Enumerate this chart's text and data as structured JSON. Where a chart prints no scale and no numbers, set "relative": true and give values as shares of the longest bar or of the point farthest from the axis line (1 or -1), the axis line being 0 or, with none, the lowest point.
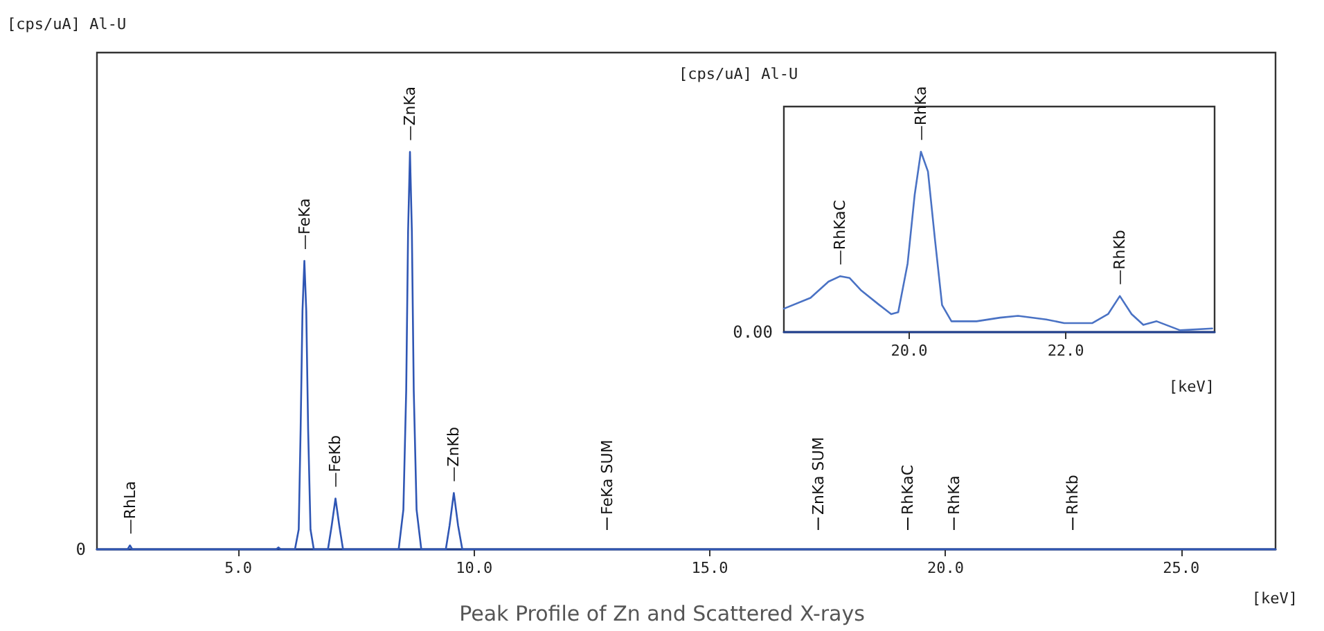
{
  "chart_data": [
    {
      "type": "line",
      "title": "Peak Profile of Zn and Scattered X-rays",
      "xlabel": "[keV]",
      "ylabel": "[cps/uA] Al-U",
      "relative": true,
      "grid": false,
      "marker": "none",
      "xlim": [
        2.0,
        27.0
      ],
      "xticks": [
        {
          "value": 5,
          "label": "5.0"
        },
        {
          "value": 10,
          "label": "10.0"
        },
        {
          "value": 15,
          "label": "15.0"
        },
        {
          "value": 20,
          "label": "20.0"
        },
        {
          "value": 25,
          "label": "25.0"
        }
      ],
      "series": [
        {
          "color": "#2f56b4",
          "x": [
            2.0,
            2.65,
            2.7,
            2.75,
            5.8,
            5.85,
            5.9,
            6.2,
            6.28,
            6.32,
            6.36,
            6.4,
            6.44,
            6.48,
            6.53,
            6.6,
            6.9,
            6.98,
            7.06,
            7.14,
            7.22,
            8.4,
            8.5,
            8.56,
            8.6,
            8.64,
            8.68,
            8.72,
            8.78,
            8.88,
            9.4,
            9.48,
            9.57,
            9.66,
            9.75,
            27.0
          ],
          "values": [
            0,
            0,
            0.01,
            0,
            0,
            0.005,
            0,
            0,
            0.05,
            0.3,
            0.6,
            0.726,
            0.6,
            0.3,
            0.05,
            0,
            0,
            0.06,
            0.128,
            0.06,
            0,
            0,
            0.1,
            0.4,
            0.8,
            1,
            0.8,
            0.4,
            0.1,
            0,
            0,
            0.06,
            0.142,
            0.06,
            0,
            0
          ]
        }
      ],
      "annotations": [
        "0",
        {
          "text": "—RhLa",
          "x": 2.7,
          "y": 0.01
        },
        {
          "text": "—FeKa",
          "x": 6.4,
          "y": 0.726
        },
        {
          "text": "—FeKb",
          "x": 7.06,
          "y": 0.128
        },
        {
          "text": "—ZnKa",
          "x": 8.64,
          "y": 1
        },
        {
          "text": "—ZnKb",
          "x": 9.57,
          "y": 0.142
        }
      ],
      "ref_lines": [
        {
          "axis": "x",
          "value": 12.82,
          "label": "FeKa SUM"
        },
        {
          "axis": "x",
          "value": 17.3,
          "label": "ZnKa SUM"
        },
        {
          "axis": "x",
          "value": 19.2,
          "label": "RhKaC"
        },
        {
          "axis": "x",
          "value": 20.18,
          "label": "RhKa"
        },
        {
          "axis": "x",
          "value": 22.7,
          "label": "RhKb"
        }
      ]
    },
    {
      "type": "line",
      "xlabel": "[keV]",
      "ylabel": "[cps/uA] Al-U",
      "relative": true,
      "grid": false,
      "marker": "none",
      "xlim": [
        18.4,
        23.9
      ],
      "xticks": [
        {
          "value": 20,
          "label": "20.0"
        },
        {
          "value": 22,
          "label": "22.0"
        }
      ],
      "series": [
        {
          "color": "#4a72c4",
          "x": [
            18.4,
            18.74,
            18.97,
            19.12,
            19.24,
            19.39,
            19.62,
            19.77,
            19.86,
            19.98,
            20.07,
            20.15,
            20.24,
            20.33,
            20.42,
            20.54,
            20.86,
            21.16,
            21.39,
            21.75,
            21.98,
            22.34,
            22.54,
            22.69,
            22.84,
            22.99,
            23.16,
            23.46,
            23.87
          ],
          "values": [
            0.13,
            0.19,
            0.28,
            0.31,
            0.3,
            0.23,
            0.15,
            0.1,
            0.11,
            0.38,
            0.76,
            1.0,
            0.89,
            0.51,
            0.15,
            0.06,
            0.06,
            0.08,
            0.09,
            0.07,
            0.05,
            0.05,
            0.1,
            0.2,
            0.1,
            0.04,
            0.06,
            0.01,
            0.02
          ]
        }
      ],
      "annotations": [
        "0.00",
        {
          "text": "—RhKaC",
          "x": 19.12,
          "y": 0.31
        },
        {
          "text": "—RhKa",
          "x": 20.15,
          "y": 1.0
        },
        {
          "text": "—RhKb",
          "x": 22.69,
          "y": 0.2
        }
      ]
    }
  ]
}
